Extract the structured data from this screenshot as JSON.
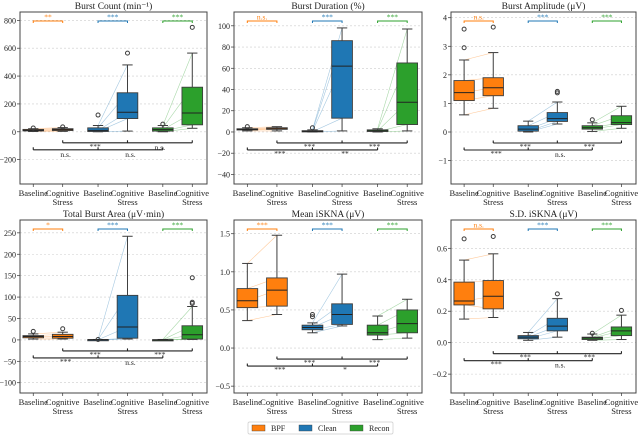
{
  "legend": {
    "entries": [
      {
        "label": "BPF",
        "color": "#ff7f0e"
      },
      {
        "label": "Clean",
        "color": "#1f77b4"
      },
      {
        "label": "Recon",
        "color": "#2ca02c"
      }
    ],
    "placement": "bottom-center"
  },
  "x_categories": [
    "Baseline",
    "Cognitive Stress"
  ],
  "x_tick_lines": [
    "Baseline",
    "Cognitive",
    "Stress"
  ],
  "chart_data": [
    {
      "type": "box",
      "title": "Burst Count (min⁻¹)",
      "ylim": [
        -375,
        860
      ],
      "grid": "horizontal-dashed",
      "yticks": [
        -200,
        0,
        200,
        400,
        600,
        800
      ],
      "ytick_labels": [
        "−200",
        "0",
        "200",
        "400",
        "600",
        "800"
      ],
      "groups": [
        {
          "method": "BPF",
          "condition": "Baseline",
          "whisker_low": 2,
          "q1": 6,
          "median": 11,
          "q3": 17,
          "whisker_high": 22,
          "outliers": [
            27
          ]
        },
        {
          "method": "BPF",
          "condition": "Cognitive Stress",
          "whisker_low": 3,
          "q1": 9,
          "median": 15,
          "q3": 22,
          "whisker_high": 30,
          "outliers": [
            35
          ]
        },
        {
          "method": "Clean",
          "condition": "Baseline",
          "whisker_low": 0,
          "q1": 2,
          "median": 10,
          "q3": 28,
          "whisker_high": 45,
          "outliers": [
            120
          ]
        },
        {
          "method": "Clean",
          "condition": "Cognitive Stress",
          "whisker_low": 5,
          "q1": 95,
          "median": 140,
          "q3": 280,
          "whisker_high": 480,
          "outliers": [
            565
          ]
        },
        {
          "method": "Recon",
          "condition": "Baseline",
          "whisker_low": 0,
          "q1": 5,
          "median": 15,
          "q3": 28,
          "whisker_high": 45,
          "outliers": [
            55
          ]
        },
        {
          "method": "Recon",
          "condition": "Cognitive Stress",
          "whisker_low": 25,
          "q1": 50,
          "median": 135,
          "q3": 320,
          "whisker_high": 565,
          "outliers": [
            750
          ]
        }
      ],
      "paired_significance": [
        "**",
        "***",
        "***"
      ],
      "stress_comparisons": [
        "***",
        "n.s."
      ],
      "baseline_comparisons": [
        "n.s.",
        "n.s."
      ]
    },
    {
      "type": "box",
      "title": "Burst Duration (%)",
      "ylim": [
        -49,
        113
      ],
      "grid": "horizontal-dashed",
      "yticks": [
        -40,
        -20,
        0,
        20,
        40,
        60,
        80,
        100
      ],
      "ytick_labels": [
        "−40",
        "−20",
        "0",
        "20",
        "40",
        "60",
        "80",
        "100"
      ],
      "groups": [
        {
          "method": "BPF",
          "condition": "Baseline",
          "whisker_low": 1,
          "q1": 2,
          "median": 2.5,
          "q3": 3,
          "whisker_high": 4,
          "outliers": [
            5
          ]
        },
        {
          "method": "BPF",
          "condition": "Cognitive Stress",
          "whisker_low": 1,
          "q1": 2.5,
          "median": 3,
          "q3": 4,
          "whisker_high": 5,
          "outliers": []
        },
        {
          "method": "Clean",
          "condition": "Baseline",
          "whisker_low": 0,
          "q1": 0.3,
          "median": 0.7,
          "q3": 1.2,
          "whisker_high": 2,
          "outliers": [
            4
          ]
        },
        {
          "method": "Clean",
          "condition": "Cognitive Stress",
          "whisker_low": 1,
          "q1": 13,
          "median": 62,
          "q3": 86,
          "whisker_high": 98,
          "outliers": []
        },
        {
          "method": "Recon",
          "condition": "Baseline",
          "whisker_low": 0,
          "q1": 0.5,
          "median": 1,
          "q3": 2,
          "whisker_high": 3,
          "outliers": []
        },
        {
          "method": "Recon",
          "condition": "Cognitive Stress",
          "whisker_low": 1,
          "q1": 7,
          "median": 28,
          "q3": 65,
          "whisker_high": 97,
          "outliers": []
        }
      ],
      "paired_significance": [
        "n.s.",
        "***",
        "***"
      ],
      "stress_comparisons": [
        "***",
        "***"
      ],
      "baseline_comparisons": [
        "***",
        "**"
      ]
    },
    {
      "type": "box",
      "title": "Burst Amplitude (μV)",
      "ylim": [
        -1.82,
        4.2
      ],
      "grid": "horizontal-dashed",
      "yticks": [
        -1,
        0,
        1,
        2,
        3,
        4
      ],
      "ytick_labels": [
        "−1",
        "0",
        "1",
        "2",
        "3",
        "4"
      ],
      "groups": [
        {
          "method": "BPF",
          "condition": "Baseline",
          "whisker_low": 0.6,
          "q1": 1.1,
          "median": 1.38,
          "q3": 1.8,
          "whisker_high": 2.52,
          "outliers": [
            2.95,
            3.6
          ]
        },
        {
          "method": "BPF",
          "condition": "Cognitive Stress",
          "whisker_low": 0.83,
          "q1": 1.27,
          "median": 1.55,
          "q3": 1.9,
          "whisker_high": 2.78,
          "outliers": [
            3.67
          ]
        },
        {
          "method": "Clean",
          "condition": "Baseline",
          "whisker_low": 0,
          "q1": 0.03,
          "median": 0.1,
          "q3": 0.22,
          "whisker_high": 0.38,
          "outliers": []
        },
        {
          "method": "Clean",
          "condition": "Cognitive Stress",
          "whisker_low": 0.28,
          "q1": 0.37,
          "median": 0.47,
          "q3": 0.68,
          "whisker_high": 1.05,
          "outliers": [
            1.37,
            1.42
          ]
        },
        {
          "method": "Recon",
          "condition": "Baseline",
          "whisker_low": 0.02,
          "q1": 0.1,
          "median": 0.15,
          "q3": 0.22,
          "whisker_high": 0.32,
          "outliers": [
            0.43
          ]
        },
        {
          "method": "Recon",
          "condition": "Cognitive Stress",
          "whisker_low": 0.13,
          "q1": 0.26,
          "median": 0.33,
          "q3": 0.57,
          "whisker_high": 0.9,
          "outliers": []
        }
      ],
      "paired_significance": [
        "n.s.",
        "***",
        "***"
      ],
      "stress_comparisons": [
        "***",
        "***"
      ],
      "baseline_comparisons": [
        "***",
        "n.s."
      ]
    },
    {
      "type": "box",
      "title": "Total Burst Area (μV·min)",
      "ylim": [
        -124,
        280
      ],
      "grid": "horizontal-dashed",
      "yticks": [
        -100,
        -50,
        0,
        50,
        100,
        150,
        200,
        250
      ],
      "ytick_labels": [
        "−100",
        "−50",
        "0",
        "50",
        "100",
        "150",
        "200",
        "250"
      ],
      "groups": [
        {
          "method": "BPF",
          "condition": "Baseline",
          "whisker_low": 2,
          "q1": 5,
          "median": 8,
          "q3": 10,
          "whisker_high": 14,
          "outliers": [
            20
          ]
        },
        {
          "method": "BPF",
          "condition": "Cognitive Stress",
          "whisker_low": 2,
          "q1": 4,
          "median": 8,
          "q3": 13,
          "whisker_high": 18,
          "outliers": [
            26
          ]
        },
        {
          "method": "Clean",
          "condition": "Baseline",
          "whisker_low": 0,
          "q1": 0,
          "median": 0.3,
          "q3": 0.8,
          "whisker_high": 1,
          "outliers": [
            1
          ]
        },
        {
          "method": "Clean",
          "condition": "Cognitive Stress",
          "whisker_low": 2,
          "q1": 4,
          "median": 30,
          "q3": 104,
          "whisker_high": 242,
          "outliers": []
        },
        {
          "method": "Recon",
          "condition": "Baseline",
          "whisker_low": 0,
          "q1": 0,
          "median": 0.2,
          "q3": 0.5,
          "whisker_high": 1,
          "outliers": []
        },
        {
          "method": "Recon",
          "condition": "Cognitive Stress",
          "whisker_low": 1,
          "q1": 2,
          "median": 12,
          "q3": 33,
          "whisker_high": 78,
          "outliers": [
            85,
            88,
            145
          ]
        }
      ],
      "paired_significance": [
        "*",
        "***",
        "***"
      ],
      "stress_comparisons": [
        "***",
        "***"
      ],
      "baseline_comparisons": [
        "***",
        "n.s."
      ]
    },
    {
      "type": "box",
      "title": "Mean iSKNA (μV)",
      "ylim": [
        -0.59,
        1.68
      ],
      "grid": "horizontal-dashed",
      "yticks": [
        -0.5,
        0,
        0.5,
        1.0,
        1.5
      ],
      "ytick_labels": [
        "−0.5",
        "0.0",
        "0.5",
        "1.0",
        "1.5"
      ],
      "groups": [
        {
          "method": "BPF",
          "condition": "Baseline",
          "whisker_low": 0.36,
          "q1": 0.53,
          "median": 0.62,
          "q3": 0.78,
          "whisker_high": 1.11,
          "outliers": []
        },
        {
          "method": "BPF",
          "condition": "Cognitive Stress",
          "whisker_low": 0.44,
          "q1": 0.55,
          "median": 0.76,
          "q3": 0.92,
          "whisker_high": 1.48,
          "outliers": []
        },
        {
          "method": "Clean",
          "condition": "Baseline",
          "whisker_low": 0.2,
          "q1": 0.24,
          "median": 0.27,
          "q3": 0.3,
          "whisker_high": 0.33,
          "outliers": [
            0.41,
            0.44
          ]
        },
        {
          "method": "Clean",
          "condition": "Cognitive Stress",
          "whisker_low": 0.29,
          "q1": 0.31,
          "median": 0.44,
          "q3": 0.58,
          "whisker_high": 0.97,
          "outliers": []
        },
        {
          "method": "Recon",
          "condition": "Baseline",
          "whisker_low": 0.11,
          "q1": 0.17,
          "median": 0.2,
          "q3": 0.3,
          "whisker_high": 0.42,
          "outliers": []
        },
        {
          "method": "Recon",
          "condition": "Cognitive Stress",
          "whisker_low": 0.13,
          "q1": 0.2,
          "median": 0.32,
          "q3": 0.5,
          "whisker_high": 0.64,
          "outliers": []
        }
      ],
      "paired_significance": [
        "***",
        "***",
        "***"
      ],
      "stress_comparisons": [
        "***",
        "***"
      ],
      "baseline_comparisons": [
        "***",
        "*"
      ]
    },
    {
      "type": "box",
      "title": "S.D. iSKNA (μV)",
      "ylim": [
        -0.32,
        0.78
      ],
      "grid": "horizontal-dashed",
      "yticks": [
        -0.2,
        0,
        0.2,
        0.4,
        0.6
      ],
      "ytick_labels": [
        "−0.2",
        "0.0",
        "0.2",
        "0.4",
        "0.6"
      ],
      "groups": [
        {
          "method": "BPF",
          "condition": "Baseline",
          "whisker_low": 0.15,
          "q1": 0.24,
          "median": 0.265,
          "q3": 0.385,
          "whisker_high": 0.525,
          "outliers": [
            0.66
          ]
        },
        {
          "method": "BPF",
          "condition": "Cognitive Stress",
          "whisker_low": 0.16,
          "q1": 0.215,
          "median": 0.295,
          "q3": 0.395,
          "whisker_high": 0.565,
          "outliers": [
            0.675
          ]
        },
        {
          "method": "Clean",
          "condition": "Baseline",
          "whisker_low": 0.015,
          "q1": 0.025,
          "median": 0.035,
          "q3": 0.045,
          "whisker_high": 0.065,
          "outliers": []
        },
        {
          "method": "Clean",
          "condition": "Cognitive Stress",
          "whisker_low": 0.035,
          "q1": 0.075,
          "median": 0.105,
          "q3": 0.155,
          "whisker_high": 0.28,
          "outliers": [
            0.31
          ]
        },
        {
          "method": "Recon",
          "condition": "Baseline",
          "whisker_low": 0.015,
          "q1": 0.02,
          "median": 0.03,
          "q3": 0.035,
          "whisker_high": 0.055,
          "outliers": [
            0.06
          ]
        },
        {
          "method": "Recon",
          "condition": "Cognitive Stress",
          "whisker_low": 0.02,
          "q1": 0.045,
          "median": 0.075,
          "q3": 0.1,
          "whisker_high": 0.175,
          "outliers": [
            0.205
          ]
        }
      ],
      "paired_significance": [
        "n.s.",
        "***",
        "***"
      ],
      "stress_comparisons": [
        "***",
        "***"
      ],
      "baseline_comparisons": [
        "***",
        "n.s."
      ]
    }
  ]
}
